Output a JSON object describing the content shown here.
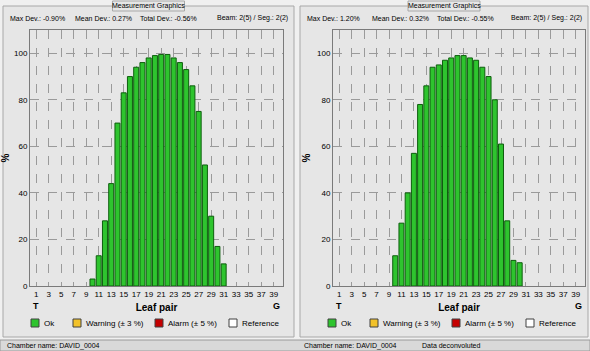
{
  "chart_data": [
    {
      "type": "bar",
      "title": "Measurement Graphics",
      "subtitle": [
        "Max Dev.: -0.90%",
        "Mean Dev.: 0.27%",
        "Total Dev.: -0.56%",
        "Beam: 2(5) / Seg.: 2(2)"
      ],
      "xlabel": "Leaf pair",
      "ylabel": "%",
      "annotations": [
        "T",
        "G"
      ],
      "x": [
        10,
        11,
        12,
        13,
        14,
        15,
        16,
        17,
        18,
        19,
        20,
        21,
        22,
        23,
        24,
        25,
        26,
        27,
        28,
        29,
        30,
        31
      ],
      "series": [
        {
          "name": "Ok",
          "color": "#2ec42e",
          "values": [
            3,
            13,
            28,
            44,
            70,
            83,
            90,
            94,
            96,
            98,
            99,
            99.5,
            99.5,
            98,
            96,
            93,
            86,
            75,
            52,
            30,
            17,
            9.5
          ]
        },
        {
          "name": "Warning (± 3 %)",
          "color": "#f2c22a",
          "values": [
            null,
            null,
            null,
            null,
            null,
            null,
            null,
            null,
            null,
            null,
            null,
            null,
            null,
            null,
            null,
            null,
            null,
            null,
            null,
            null,
            null,
            null
          ]
        },
        {
          "name": "Alarm (± 5 %)",
          "color": "#c40000",
          "values": [
            null,
            null,
            null,
            null,
            null,
            null,
            null,
            null,
            null,
            null,
            null,
            null,
            null,
            null,
            null,
            null,
            null,
            null,
            null,
            null,
            null,
            null
          ]
        },
        {
          "name": "Reference",
          "color": "#ffffff",
          "values": [
            null,
            null,
            null,
            null,
            null,
            null,
            null,
            null,
            null,
            null,
            null,
            null,
            null,
            null,
            null,
            null,
            null,
            null,
            null,
            null,
            null,
            null
          ]
        }
      ],
      "xlim": [
        0,
        40.5
      ],
      "xticks": [
        1,
        3,
        5,
        7,
        9,
        11,
        13,
        15,
        17,
        19,
        21,
        23,
        25,
        27,
        29,
        31,
        33,
        35,
        37,
        39
      ],
      "ylim": [
        0,
        110
      ],
      "yticks": [
        0,
        20,
        40,
        60,
        80,
        100
      ],
      "grid": true,
      "legend": "bottom",
      "footer": [
        "Chamber name: DAVID_0004"
      ]
    },
    {
      "type": "bar",
      "title": "Measurement Graphics",
      "subtitle": [
        "Max Dev.: 1.20%",
        "Mean Dev.: 0.32%",
        "Total Dev.: -0.55%",
        "Beam: 2(5) / Seg.: 2(2)"
      ],
      "xlabel": "Leaf pair",
      "ylabel": "%",
      "annotations": [
        "T",
        "G"
      ],
      "x": [
        10,
        11,
        12,
        13,
        14,
        15,
        16,
        17,
        18,
        19,
        20,
        21,
        22,
        23,
        24,
        25,
        26,
        27,
        28,
        29,
        30
      ],
      "series": [
        {
          "name": "Ok",
          "color": "#2ec42e",
          "values": [
            13,
            27,
            40,
            57,
            78,
            86,
            94,
            95,
            97,
            98,
            99,
            99,
            98,
            97,
            94,
            90,
            80,
            61,
            28,
            11,
            10
          ]
        },
        {
          "name": "Warning (± 3 %)",
          "color": "#f2c22a",
          "values": [
            null,
            null,
            null,
            null,
            null,
            null,
            null,
            null,
            null,
            null,
            null,
            null,
            null,
            null,
            null,
            null,
            null,
            null,
            null,
            null,
            null
          ]
        },
        {
          "name": "Alarm (± 5 %)",
          "color": "#c40000",
          "values": [
            null,
            null,
            null,
            null,
            null,
            null,
            null,
            null,
            null,
            null,
            null,
            null,
            null,
            null,
            null,
            null,
            null,
            null,
            null,
            null,
            null
          ]
        },
        {
          "name": "Reference",
          "color": "#ffffff",
          "values": [
            null,
            null,
            null,
            null,
            null,
            null,
            null,
            null,
            null,
            null,
            null,
            null,
            null,
            null,
            null,
            null,
            null,
            null,
            null,
            null,
            null
          ]
        }
      ],
      "xlim": [
        0,
        40.5
      ],
      "xticks": [
        1,
        3,
        5,
        7,
        9,
        11,
        13,
        15,
        17,
        19,
        21,
        23,
        25,
        27,
        29,
        31,
        33,
        35,
        37,
        39
      ],
      "ylim": [
        0,
        110
      ],
      "yticks": [
        0,
        20,
        40,
        60,
        80,
        100
      ],
      "grid": true,
      "legend": "bottom",
      "footer": [
        "Chamber name: DAVID_0004",
        "Data deconvoluted"
      ]
    }
  ]
}
